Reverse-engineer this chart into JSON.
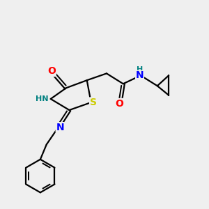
{
  "bg_color": "#efefef",
  "atom_colors": {
    "C": "#000000",
    "N": "#0000ff",
    "O": "#ff0000",
    "S": "#cccc00",
    "H_label": "#008080"
  },
  "bond_color": "#000000",
  "bond_lw": 1.6,
  "font_size_atom": 10,
  "font_size_small": 8,
  "figsize": [
    3.0,
    3.0
  ],
  "dpi": 100
}
